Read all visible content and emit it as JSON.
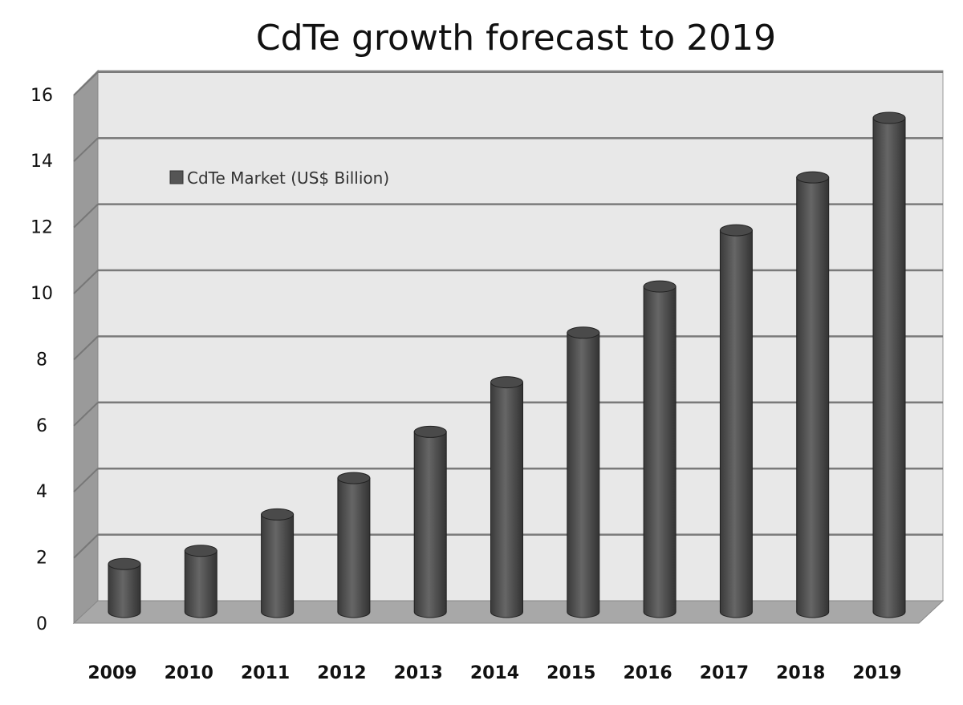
{
  "chart_data": {
    "type": "bar",
    "title": "CdTe growth forecast to 2019",
    "xlabel": "",
    "ylabel": "",
    "categories": [
      "2009",
      "2010",
      "2011",
      "2012",
      "2013",
      "2014",
      "2015",
      "2016",
      "2017",
      "2018",
      "2019"
    ],
    "series": [
      {
        "name": "CdTe Market (US$ Billion)",
        "values": [
          1.5,
          1.9,
          3.0,
          4.1,
          5.5,
          7.0,
          8.5,
          9.9,
          11.6,
          13.2,
          15.0
        ]
      }
    ],
    "ylim": [
      0,
      16
    ],
    "yticks": [
      "0",
      "2",
      "4",
      "6",
      "8",
      "10",
      "12",
      "14",
      "16"
    ],
    "grid": true,
    "legend_position": "top-left",
    "colors": {
      "bar": "#555555",
      "wall": "#e8e8e8",
      "floor": "#a8a8a8",
      "grid": "#7a7a7a"
    }
  }
}
